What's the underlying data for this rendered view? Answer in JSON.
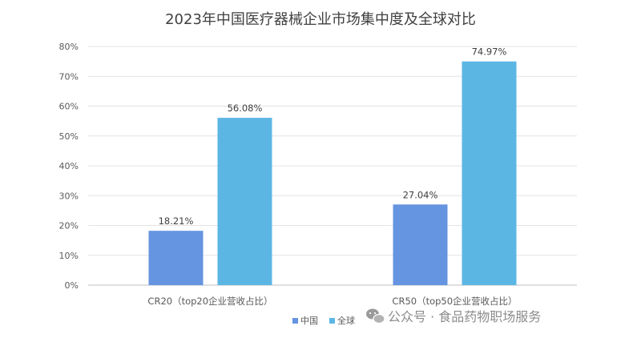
{
  "chart_data": {
    "type": "bar",
    "title": "2023年中国医疗器械企业市场集中度及全球对比",
    "categories": [
      "CR20（top20企业营收占比）",
      "CR50（top50企业营收占比）"
    ],
    "series": [
      {
        "name": "中国",
        "values": [
          18.21,
          27.04
        ],
        "labels": [
          "18.21%",
          "27.04%"
        ],
        "color": "#6594e0"
      },
      {
        "name": "全球",
        "values": [
          56.08,
          74.97
        ],
        "labels": [
          "56.08%",
          "74.97%"
        ],
        "color": "#5cb6e4"
      }
    ],
    "ylim": [
      0,
      80
    ],
    "yticks": [
      "0%",
      "10%",
      "20%",
      "30%",
      "40%",
      "50%",
      "60%",
      "70%",
      "80%"
    ],
    "grid": true,
    "legend_position": "bottom"
  },
  "watermark": {
    "text": "公众号 · 食品药物职场服务",
    "icon": "wechat-icon"
  }
}
